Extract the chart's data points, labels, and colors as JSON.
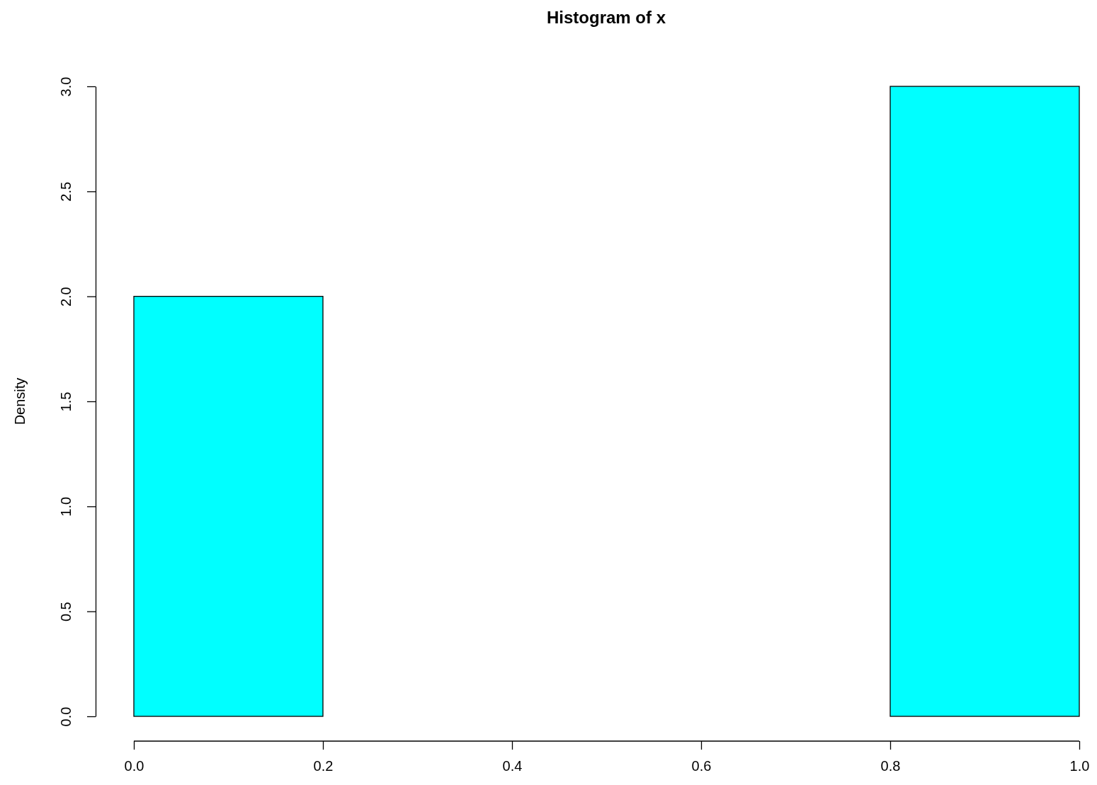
{
  "chart_data": {
    "type": "histogram",
    "title": "Histogram of x",
    "ylabel": "Density",
    "bins": [
      0,
      0.2,
      0.4,
      0.6,
      0.8,
      1.0
    ],
    "values": [
      2,
      0,
      0,
      0,
      3
    ],
    "color": "#00ffff",
    "xlim": [
      0,
      1
    ],
    "xticks": [
      {
        "value": 0,
        "label": "0.0"
      },
      0.2,
      0.4,
      0.6,
      0.8,
      {
        "value": 1,
        "label": "1.0"
      }
    ],
    "ylim": [
      0,
      3
    ],
    "yticks": [
      {
        "value": 0,
        "label": "0.0"
      },
      0.5,
      {
        "value": 1,
        "label": "1.0"
      },
      1.5,
      {
        "value": 2,
        "label": "2.0"
      },
      2.5,
      {
        "value": 3,
        "label": "3.0"
      }
    ]
  }
}
